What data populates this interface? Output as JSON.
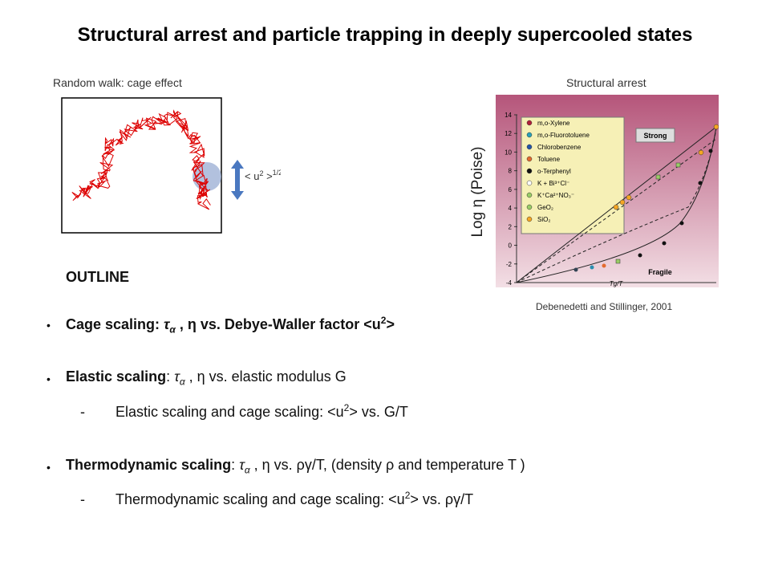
{
  "header": {
    "title": "Structural arrest and particle trapping in deeply supercooled states"
  },
  "left_panel": {
    "caption": "Random walk: cage effect",
    "symbol": "< u",
    "symbol_sup": "2",
    "symbol_end": " >",
    "symbol_exp": "1/2"
  },
  "right_panel": {
    "caption": "Structural arrest",
    "y_label": "Log η (Poise)",
    "credit": "Debenedetti and Stillinger, 2001",
    "figure": {
      "ticks": [
        "14",
        "12",
        "10",
        "8",
        "6",
        "4",
        "2",
        "0",
        "-2",
        "-4"
      ],
      "legend": [
        "m,o-Xylene",
        "m,o-Fluorotoluene",
        "Chlorobenzene",
        "Toluene",
        "o-Terphenyl",
        "K + Bi³⁺Cl⁻",
        "K⁺Ca²⁺NO₃⁻",
        "GeO₂",
        "SiO₂"
      ],
      "strong": "Strong",
      "fragile": "Fragile",
      "x_label": "Tg/T"
    }
  },
  "outline": {
    "heading": "OUTLINE",
    "items": [
      {
        "label": "Cage scaling: ",
        "tau": "τ",
        "alpha": "α",
        "text": " , η vs. Debye-Waller factor <u",
        "sup": "2",
        "end": ">"
      },
      {
        "label": "Elastic scaling",
        "colon": ": ",
        "tau": "τ",
        "alpha": "α",
        "text": " , η vs. elastic modulus G"
      },
      {
        "dash": "-",
        "text": "Elastic scaling and cage scaling: <u",
        "sup": "2",
        "end": "> vs. G/T"
      },
      {
        "label": "Thermodynamic scaling",
        "colon": ": ",
        "tau": "τ",
        "alpha": "α",
        "text": " , η vs. ργ/T,   (density ρ and temperature T )"
      },
      {
        "dash": "-",
        "text": "Thermodynamic scaling and cage scaling: <u",
        "sup": "2",
        "end": "> vs. ργ/T"
      }
    ]
  }
}
